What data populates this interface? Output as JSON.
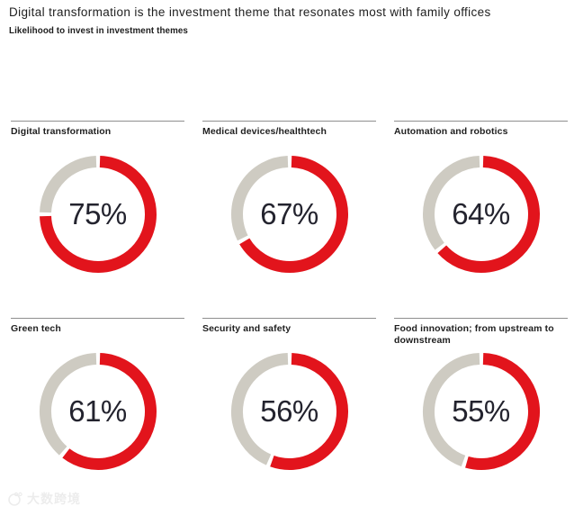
{
  "header": {
    "title": "Digital transformation is the investment theme that resonates most with family offices",
    "subtitle": "Likelihood to invest in investment themes"
  },
  "colors": {
    "arc_red": "#e2141c",
    "arc_gray": "#cecbc2",
    "value_text": "#23232e",
    "rule_gray": "#8f8f8f"
  },
  "chart_data": {
    "type": "pie",
    "variant": "donut-grid",
    "title": "Digital transformation is the investment theme that resonates most with family offices",
    "subtitle": "Likelihood to invest in investment themes",
    "unit": "%",
    "start_angle": "top",
    "direction": "clockwise",
    "legend": "none",
    "items": [
      {
        "label": "Digital transformation",
        "value": 75,
        "display": "75%"
      },
      {
        "label": "Medical devices/healthtech",
        "value": 67,
        "display": "67%"
      },
      {
        "label": "Automation and robotics",
        "value": 64,
        "display": "64%"
      },
      {
        "label": "Green tech",
        "value": 61,
        "display": "61%"
      },
      {
        "label": "Security and safety",
        "value": 56,
        "display": "56%"
      },
      {
        "label": "Food innovation; from upstream to downstream",
        "value": 55,
        "display": "55%"
      }
    ]
  },
  "watermark": {
    "text": "大数跨境"
  }
}
